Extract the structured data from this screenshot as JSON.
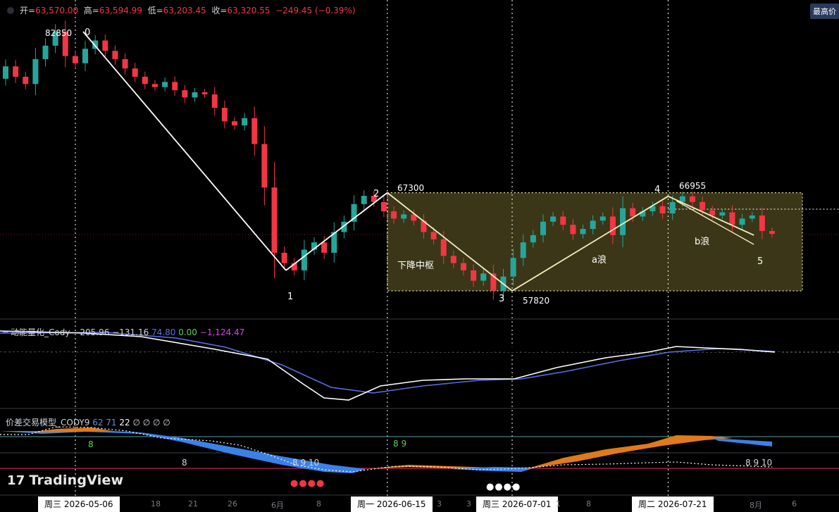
{
  "header": {
    "open_label": "开=",
    "open": "63,570.00",
    "high_label": "高=",
    "high": "63,594.99",
    "low_label": "低=",
    "low": "63,203.45",
    "close_label": "收=",
    "close": "63,320.55",
    "change": "−249.45 (−0.39%)",
    "max_badge": "最高价"
  },
  "chart_data": {
    "type": "candlestick",
    "price_annotations": [
      {
        "text": "82850"
      },
      {
        "text": "67300"
      },
      {
        "text": "66955"
      },
      {
        "text": "57820"
      }
    ],
    "wave_labels": [
      "0",
      "1",
      "2",
      "3",
      "4",
      "5",
      "a浪",
      "b浪"
    ],
    "zone_label": "下降中枢",
    "zone_range": [
      57820,
      67300
    ],
    "wave_points": [
      {
        "label": "0",
        "date": "2026-05-07",
        "value": 82850
      },
      {
        "label": "1",
        "date": "2026-06-02",
        "value": 59800
      },
      {
        "label": "2",
        "date": "2026-06-15",
        "value": 67300
      },
      {
        "label": "3",
        "date": "2026-07-01",
        "value": 57820
      },
      {
        "label": "4",
        "date": "2026-07-21",
        "value": 66955
      },
      {
        "label": "5",
        "date": "2026-08-01",
        "value": 63200
      }
    ],
    "vertical_markers": [
      "2026-05-06",
      "2026-06-15",
      "2026-07-01",
      "2026-07-21"
    ],
    "candles_close_approx": [
      79500,
      78500,
      77800,
      80200,
      81500,
      82850,
      80500,
      79800,
      81200,
      82000,
      81000,
      80200,
      79300,
      78500,
      77800,
      77500,
      78000,
      77200,
      76500,
      77000,
      76800,
      75500,
      74200,
      73800,
      74500,
      72000,
      67800,
      61500,
      60500,
      59800,
      61800,
      62500,
      61500,
      63500,
      64500,
      66200,
      67000,
      66400,
      65500,
      64800,
      65200,
      64600,
      63500,
      62800,
      61200,
      60500,
      59800,
      58800,
      59500,
      57820,
      59200,
      61000,
      62500,
      63200,
      64500,
      65000,
      64200,
      63300,
      63800,
      64600,
      65000,
      63200,
      65800,
      65000,
      65500,
      66000,
      65300,
      66400,
      66955,
      66400,
      65600,
      65100,
      65400,
      64200,
      64800,
      65100,
      63600,
      63320
    ]
  },
  "indicator1": {
    "title": "动能量化_Cody",
    "values": [
      {
        "text": "−205.96",
        "color": "#d1d4dc"
      },
      {
        "text": "−131.16",
        "color": "#d1d4dc"
      },
      {
        "text": "74.80",
        "color": "#5b6ee1"
      },
      {
        "text": "0.00",
        "color": "#5ad15a"
      },
      {
        "text": "−1,124.47",
        "color": "#e040fb"
      }
    ]
  },
  "indicator2": {
    "title": "价差交易模型_CODY9",
    "values": [
      {
        "text": "62",
        "color": "#5b8fe8"
      },
      {
        "text": "71",
        "color": "#5b8fe8"
      },
      {
        "text": "22",
        "color": "#ffffff"
      },
      {
        "text": "∅ ∅ ∅ ∅",
        "color": "#d1d4dc"
      }
    ],
    "markers": [
      {
        "text": "8",
        "color": "#5ad15a"
      },
      {
        "text": "8 9",
        "color": "#5ad15a"
      },
      {
        "text": "8",
        "color": "#d1d4dc"
      },
      {
        "text": "8 9 10",
        "color": "#d1d4dc"
      },
      {
        "text": "8 9 10",
        "color": "#d1d4dc"
      }
    ]
  },
  "time_axis": {
    "highlighted": [
      "周三 2026-05-06",
      "周一 2026-06-15",
      "周三 2026-07-01",
      "周二 2026-07-21"
    ],
    "ticks": [
      "18",
      "21",
      "26",
      "6月",
      "8",
      "3",
      "3",
      "1",
      "8",
      "8月",
      "6"
    ]
  },
  "brand": "TradingView",
  "colors": {
    "up": "#26a69a",
    "down": "#f23645",
    "zone": "#3a3617",
    "macd_line": "#5b6ee1",
    "diff_line": "#ffffff"
  }
}
